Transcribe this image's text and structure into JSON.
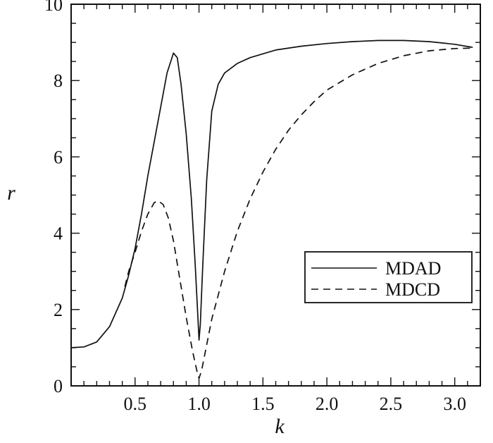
{
  "chart_data": {
    "type": "line",
    "title": "",
    "xlabel": "k",
    "ylabel": "r",
    "xlim": [
      0,
      3.2
    ],
    "ylim": [
      0,
      10
    ],
    "x_ticks": [
      "0.5",
      "1.0",
      "1.5",
      "2.0",
      "2.5",
      "3.0"
    ],
    "x_tick_values": [
      0.5,
      1.0,
      1.5,
      2.0,
      2.5,
      3.0
    ],
    "y_ticks": [
      "0",
      "2",
      "4",
      "6",
      "8",
      "10"
    ],
    "y_tick_values": [
      0,
      2,
      4,
      6,
      8,
      10
    ],
    "grid": false,
    "legend_position": "center-right",
    "series": [
      {
        "name": "MDAD",
        "style": "solid",
        "color": "#111111",
        "points": [
          [
            0.0,
            1.0
          ],
          [
            0.1,
            1.02
          ],
          [
            0.2,
            1.15
          ],
          [
            0.3,
            1.55
          ],
          [
            0.4,
            2.3
          ],
          [
            0.45,
            2.9
          ],
          [
            0.5,
            3.6
          ],
          [
            0.55,
            4.5
          ],
          [
            0.6,
            5.5
          ],
          [
            0.65,
            6.4
          ],
          [
            0.7,
            7.3
          ],
          [
            0.75,
            8.2
          ],
          [
            0.8,
            8.72
          ],
          [
            0.83,
            8.6
          ],
          [
            0.86,
            7.9
          ],
          [
            0.9,
            6.6
          ],
          [
            0.94,
            4.9
          ],
          [
            0.97,
            3.2
          ],
          [
            0.99,
            1.9
          ],
          [
            1.0,
            1.2
          ],
          [
            1.01,
            1.6
          ],
          [
            1.03,
            3.2
          ],
          [
            1.06,
            5.4
          ],
          [
            1.1,
            7.2
          ],
          [
            1.15,
            7.9
          ],
          [
            1.2,
            8.2
          ],
          [
            1.3,
            8.45
          ],
          [
            1.4,
            8.6
          ],
          [
            1.6,
            8.8
          ],
          [
            1.8,
            8.9
          ],
          [
            2.0,
            8.97
          ],
          [
            2.2,
            9.02
          ],
          [
            2.4,
            9.05
          ],
          [
            2.6,
            9.05
          ],
          [
            2.8,
            9.02
          ],
          [
            3.0,
            8.95
          ],
          [
            3.14,
            8.87
          ]
        ]
      },
      {
        "name": "MDCD",
        "style": "dashed",
        "color": "#111111",
        "points": [
          [
            0.42,
            2.6
          ],
          [
            0.45,
            3.0
          ],
          [
            0.5,
            3.5
          ],
          [
            0.55,
            4.05
          ],
          [
            0.6,
            4.5
          ],
          [
            0.65,
            4.8
          ],
          [
            0.68,
            4.85
          ],
          [
            0.72,
            4.75
          ],
          [
            0.76,
            4.4
          ],
          [
            0.8,
            3.8
          ],
          [
            0.85,
            2.8
          ],
          [
            0.9,
            1.8
          ],
          [
            0.95,
            0.9
          ],
          [
            0.99,
            0.3
          ],
          [
            1.0,
            0.2
          ],
          [
            1.02,
            0.4
          ],
          [
            1.05,
            0.9
          ],
          [
            1.1,
            1.75
          ],
          [
            1.2,
            3.0
          ],
          [
            1.3,
            4.05
          ],
          [
            1.4,
            4.9
          ],
          [
            1.5,
            5.6
          ],
          [
            1.6,
            6.2
          ],
          [
            1.7,
            6.7
          ],
          [
            1.8,
            7.1
          ],
          [
            1.9,
            7.45
          ],
          [
            2.0,
            7.75
          ],
          [
            2.2,
            8.15
          ],
          [
            2.4,
            8.45
          ],
          [
            2.6,
            8.65
          ],
          [
            2.8,
            8.78
          ],
          [
            3.0,
            8.84
          ],
          [
            3.14,
            8.85
          ]
        ]
      }
    ]
  }
}
